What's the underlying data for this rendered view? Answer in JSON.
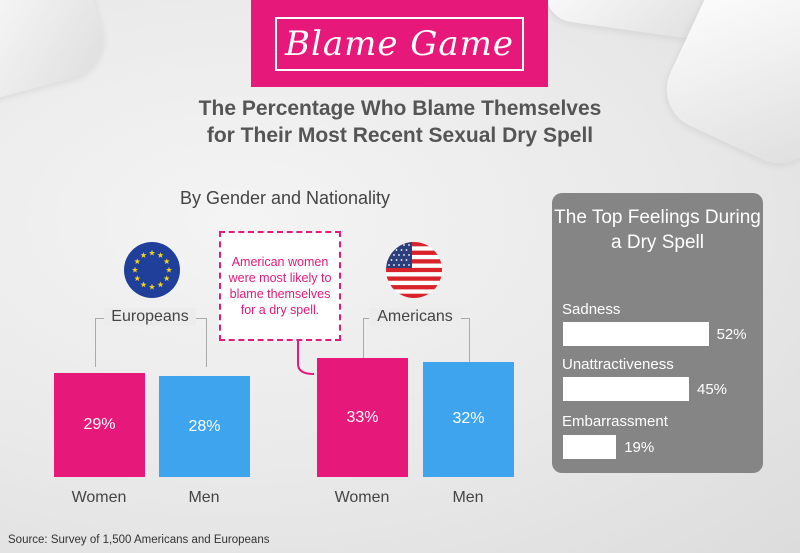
{
  "banner": {
    "title": "Blame Game"
  },
  "subtitle": {
    "line1": "The Percentage Who Blame Themselves",
    "line2": "for Their Most Recent Sexual Dry Spell"
  },
  "section_title": "By Gender and Nationality",
  "callout": "American women were most likely to blame themselves for a dry spell.",
  "colors": {
    "women": "#e6197a",
    "men": "#3fa4ee",
    "panel": "#858585"
  },
  "icons": {
    "eu_flag": "eu-flag-icon",
    "us_flag": "us-flag-icon"
  },
  "chart_data": [
    {
      "type": "bar",
      "title": "By Gender and Nationality",
      "groups": [
        {
          "name": "Europeans",
          "categories": [
            "Women",
            "Men"
          ],
          "values": [
            29,
            28
          ],
          "labels": [
            "29%",
            "28%"
          ]
        },
        {
          "name": "Americans",
          "categories": [
            "Women",
            "Men"
          ],
          "values": [
            33,
            32
          ],
          "labels": [
            "33%",
            "32%"
          ]
        }
      ],
      "unit": "%"
    },
    {
      "type": "bar",
      "title": "The Top Feelings During a Dry Spell",
      "categories": [
        "Sadness",
        "Unattractiveness",
        "Embarrassment"
      ],
      "values": [
        52,
        45,
        19
      ],
      "labels": [
        "52%",
        "45%",
        "19%"
      ],
      "unit": "%"
    }
  ],
  "source": "Source: Survey of 1,500 Americans and Europeans"
}
